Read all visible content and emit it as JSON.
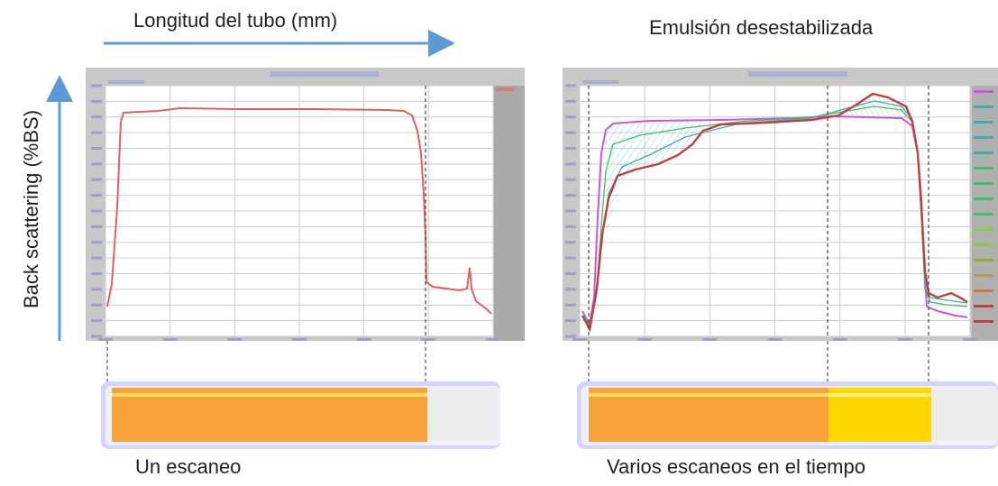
{
  "labels": {
    "x_axis": "Longitud del tubo (mm)",
    "y_axis": "Back scattering (%BS)",
    "right_title": "Emulsión desestabilizada",
    "left_caption": "Un escaneo",
    "right_caption": "Varios escaneos en el tiempo"
  },
  "colors": {
    "arrow": "#5b9bd5",
    "plot_background": "#ffffff",
    "plot_frame": "#c8c8c8",
    "plot_side_panel": "#a9a9a9",
    "grid": "#cccccc",
    "scan_red": "#e06060",
    "scan_dark_red": "#c04040",
    "scan_violet": "#cc55dd",
    "scan_green": "#44bb66",
    "scan_teal": "#44aaaa",
    "tube_glass": "#d4d4ff",
    "tube_orange": "#f8a23a",
    "tube_yellow": "#ffd800",
    "tube_empty": "#ececec",
    "dashed_line": "#555555"
  },
  "panels": [
    {
      "name": "single-scan",
      "tube_segments": [
        "orange",
        "empty"
      ]
    },
    {
      "name": "multiple-scans",
      "tube_segments": [
        "orange",
        "yellow",
        "empty"
      ]
    }
  ]
}
